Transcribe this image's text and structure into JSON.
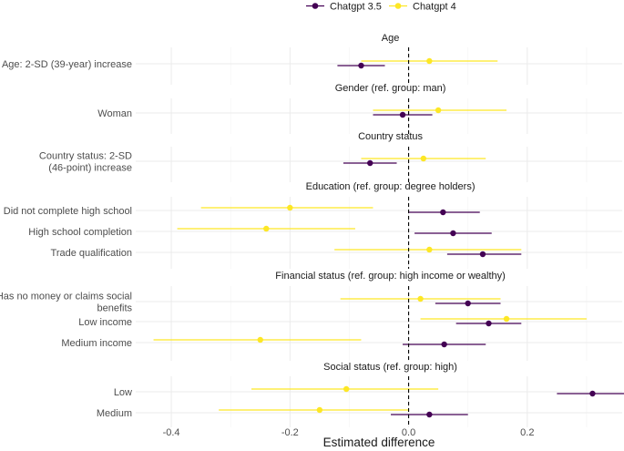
{
  "chart_data": {
    "type": "forest",
    "xlabel": "Estimated difference",
    "xlim": [
      -0.46,
      0.36
    ],
    "x_ticks": [
      -0.4,
      -0.2,
      0.0,
      0.2
    ],
    "x_tick_labels": [
      "-0.4",
      "-0.2",
      "0.0",
      "0.2"
    ],
    "reference_line": 0,
    "legend": [
      {
        "name": "Chatgpt 3.5",
        "color": "#440154"
      },
      {
        "name": "Chatgpt 4",
        "color": "#FDE725"
      }
    ],
    "panels": [
      {
        "title": "Age",
        "rows": [
          {
            "label": [
              "Age: 2-SD (39-year) increase"
            ],
            "gpt35": {
              "est": -0.08,
              "lo": -0.12,
              "hi": -0.04
            },
            "gpt4": {
              "est": 0.035,
              "lo": -0.08,
              "hi": 0.15
            }
          }
        ]
      },
      {
        "title": "Gender (ref. group: man)",
        "rows": [
          {
            "label": [
              "Woman"
            ],
            "gpt35": {
              "est": -0.01,
              "lo": -0.06,
              "hi": 0.04
            },
            "gpt4": {
              "est": 0.05,
              "lo": -0.06,
              "hi": 0.165
            }
          }
        ]
      },
      {
        "title": "Country status",
        "rows": [
          {
            "label": [
              "Country status: 2-SD",
              "(46-point) increase"
            ],
            "gpt35": {
              "est": -0.065,
              "lo": -0.11,
              "hi": -0.02
            },
            "gpt4": {
              "est": 0.025,
              "lo": -0.08,
              "hi": 0.13
            }
          }
        ]
      },
      {
        "title": "Education (ref. group: degree holders)",
        "rows": [
          {
            "label": [
              "Did not complete high school"
            ],
            "gpt35": {
              "est": 0.058,
              "lo": 0.0,
              "hi": 0.12
            },
            "gpt4": {
              "est": -0.2,
              "lo": -0.35,
              "hi": -0.06
            }
          },
          {
            "label": [
              "High school completion"
            ],
            "gpt35": {
              "est": 0.075,
              "lo": 0.01,
              "hi": 0.14
            },
            "gpt4": {
              "est": -0.24,
              "lo": -0.39,
              "hi": -0.09
            }
          },
          {
            "label": [
              "Trade qualification"
            ],
            "gpt35": {
              "est": 0.125,
              "lo": 0.065,
              "hi": 0.19
            },
            "gpt4": {
              "est": 0.035,
              "lo": -0.125,
              "hi": 0.19
            }
          }
        ]
      },
      {
        "title": "Financial status (ref. group: high income or wealthy)",
        "rows": [
          {
            "label": [
              "Has no money or claims social",
              "benefits"
            ],
            "gpt35": {
              "est": 0.1,
              "lo": 0.045,
              "hi": 0.155
            },
            "gpt4": {
              "est": 0.02,
              "lo": -0.115,
              "hi": 0.155
            }
          },
          {
            "label": [
              "Low income"
            ],
            "gpt35": {
              "est": 0.135,
              "lo": 0.08,
              "hi": 0.19
            },
            "gpt4": {
              "est": 0.165,
              "lo": 0.02,
              "hi": 0.3
            }
          },
          {
            "label": [
              "Medium income"
            ],
            "gpt35": {
              "est": 0.06,
              "lo": -0.01,
              "hi": 0.13
            },
            "gpt4": {
              "est": -0.25,
              "lo": -0.43,
              "hi": -0.08
            }
          }
        ]
      },
      {
        "title": "Social status (ref. group: high)",
        "rows": [
          {
            "label": [
              "Low"
            ],
            "gpt35": {
              "est": 0.31,
              "lo": 0.25,
              "hi": 0.37
            },
            "gpt4": {
              "est": -0.105,
              "lo": -0.265,
              "hi": 0.05
            }
          },
          {
            "label": [
              "Medium"
            ],
            "gpt35": {
              "est": 0.035,
              "lo": -0.03,
              "hi": 0.1
            },
            "gpt4": {
              "est": -0.15,
              "lo": -0.32,
              "hi": 0.0
            }
          }
        ]
      }
    ]
  }
}
